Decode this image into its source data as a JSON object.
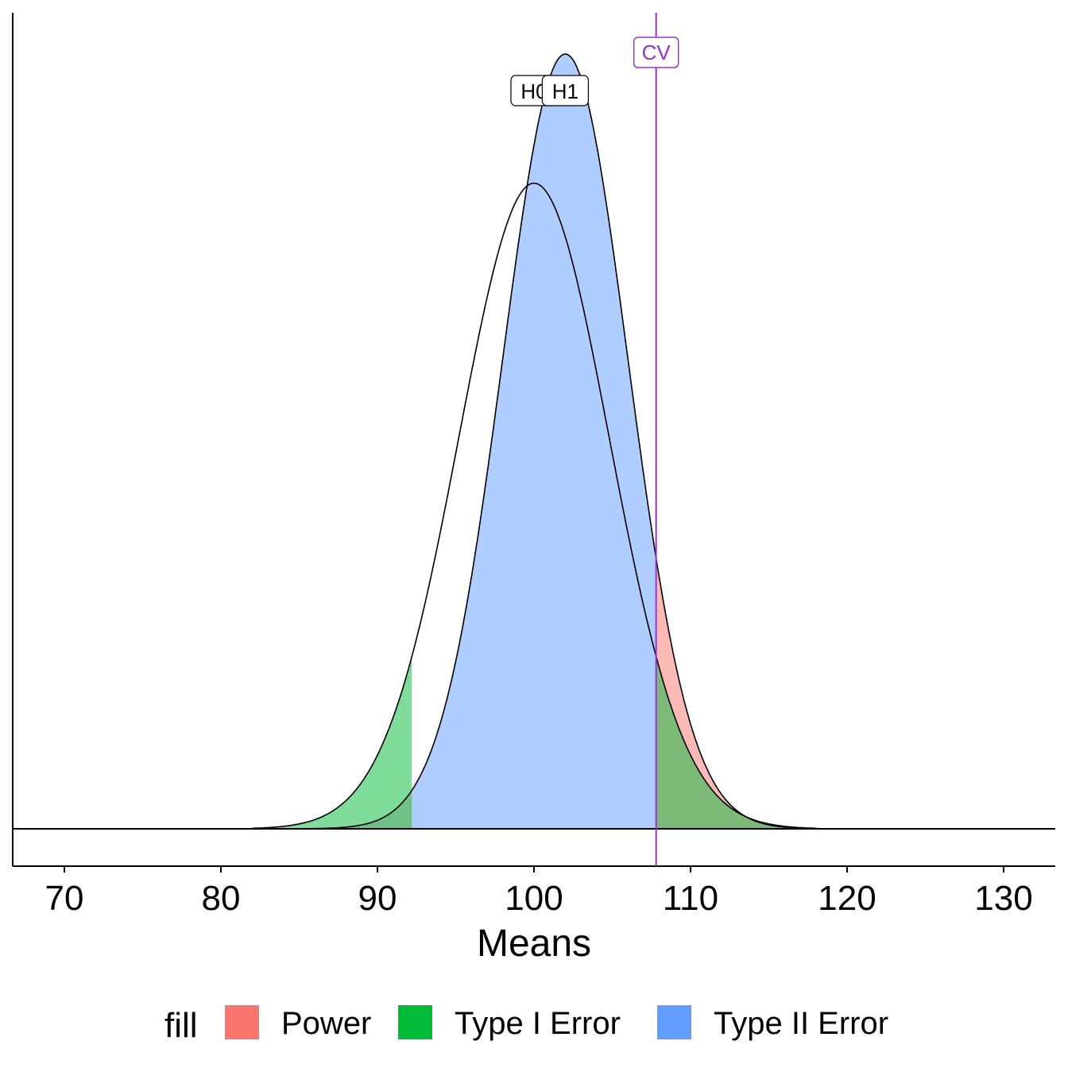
{
  "chart_data": {
    "type": "area",
    "xlabel": "Means",
    "ylabel": "",
    "xlim": [
      66.7,
      133.3
    ],
    "x_ticks": [
      70,
      80,
      90,
      100,
      110,
      120,
      130
    ],
    "grid": false,
    "legend_position": "bottom",
    "legend_title": "fill",
    "distributions": [
      {
        "name": "H0",
        "mean": 100,
        "sd": 4.8,
        "label": "H0"
      },
      {
        "name": "H1",
        "mean": 102,
        "sd": 4.0,
        "label": "H1"
      }
    ],
    "critical_values": {
      "lower": 92.2,
      "upper": 107.8,
      "label": "CV"
    },
    "series": [
      {
        "name": "Power",
        "color": "#F8766D",
        "region": "H1 right of upper CV"
      },
      {
        "name": "Type I Error",
        "color": "#00BA38",
        "region": "H0 tails beyond CVs"
      },
      {
        "name": "Type II Error",
        "color": "#619CFF",
        "region": "H1 between CVs"
      }
    ],
    "cv_color": "#9A32CD"
  }
}
